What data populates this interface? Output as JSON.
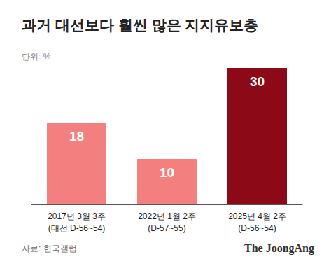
{
  "chart_data": {
    "type": "bar",
    "title": "과거 대선보다 훨씬 많은 지지유보층",
    "subtitle": "단위: %",
    "categories": [
      "2017년 3월 3주\n(대선 D-56~54)",
      "2022년 1월 2주\n(D-57~55)",
      "2025년 4월 2주\n(D-56~54)"
    ],
    "values": [
      18,
      10,
      30
    ],
    "colors": [
      "#f47f7f",
      "#f47f7f",
      "#8c0a17"
    ],
    "ylim": [
      0,
      30
    ],
    "grid": false,
    "data_labels": true,
    "tick_labels": "x",
    "source": "자료: 한국갤럽",
    "publisher": "The JoongAng"
  }
}
